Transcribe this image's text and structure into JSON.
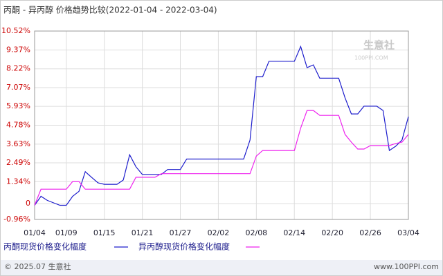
{
  "chart_data": {
    "type": "line",
    "title": "丙酮 - 异丙醇 价格趋势比较(2022-01-04 - 2022-03-04)",
    "categories": [
      "01/04",
      null,
      null,
      null,
      null,
      "01/09",
      null,
      null,
      null,
      null,
      null,
      "01/15",
      null,
      null,
      null,
      null,
      null,
      "01/21",
      null,
      null,
      null,
      null,
      null,
      "01/27",
      null,
      null,
      null,
      null,
      null,
      "02/02",
      null,
      null,
      null,
      null,
      null,
      "02/08",
      null,
      null,
      null,
      null,
      null,
      "02/14",
      null,
      null,
      null,
      null,
      null,
      "02/20",
      null,
      null,
      null,
      null,
      null,
      "02/26",
      null,
      null,
      null,
      null,
      null,
      "03/04"
    ],
    "series": [
      {
        "name": "丙酮现货价格变化幅度",
        "color": "#1c1ccc",
        "values": [
          -0.1,
          0.45,
          0.2,
          0.05,
          -0.1,
          -0.1,
          0.45,
          0.75,
          1.95,
          1.6,
          1.27,
          1.18,
          1.18,
          1.18,
          1.44,
          2.98,
          2.25,
          1.78,
          1.78,
          1.78,
          1.78,
          2.08,
          2.08,
          2.08,
          2.72,
          2.72,
          2.72,
          2.72,
          2.72,
          2.72,
          2.72,
          2.72,
          2.72,
          2.72,
          3.88,
          7.74,
          7.74,
          8.68,
          8.68,
          8.68,
          8.68,
          8.68,
          9.58,
          8.29,
          8.46,
          7.65,
          7.65,
          7.65,
          7.65,
          6.45,
          5.47,
          5.47,
          5.94,
          5.94,
          5.94,
          5.68,
          3.24,
          3.5,
          3.88,
          5.3
        ]
      },
      {
        "name": "异丙醇现货价格变化幅度",
        "color": "#ee22ee",
        "values": [
          -0.1,
          0.88,
          0.88,
          0.88,
          0.88,
          0.88,
          1.35,
          1.35,
          0.88,
          0.88,
          0.88,
          0.88,
          0.88,
          0.88,
          0.88,
          0.88,
          1.61,
          1.61,
          1.61,
          1.61,
          1.83,
          1.83,
          1.83,
          1.83,
          1.83,
          1.83,
          1.83,
          1.83,
          1.83,
          1.83,
          1.83,
          1.83,
          1.83,
          1.83,
          1.83,
          2.9,
          3.24,
          3.24,
          3.24,
          3.24,
          3.24,
          3.24,
          4.61,
          5.68,
          5.68,
          5.38,
          5.38,
          5.38,
          5.38,
          4.22,
          3.75,
          3.33,
          3.33,
          3.54,
          3.54,
          3.54,
          3.54,
          3.67,
          3.75,
          4.22
        ]
      }
    ],
    "ylim": [
      -0.96,
      10.52
    ],
    "yticks": [
      {
        "value": -0.96,
        "label": "-0.96%"
      },
      0,
      {
        "value": 1.34,
        "label": "1.34%"
      },
      {
        "value": 2.49,
        "label": "2.49%"
      },
      {
        "value": 3.63,
        "label": "3.63%"
      },
      {
        "value": 4.78,
        "label": "4.78%"
      },
      {
        "value": 5.93,
        "label": "5.93%"
      },
      {
        "value": 7.07,
        "label": "7.07%"
      },
      {
        "value": 8.22,
        "label": "8.22%"
      },
      {
        "value": 9.37,
        "label": "9.37%"
      },
      {
        "value": 10.52,
        "label": "10.52%"
      }
    ],
    "grid": true,
    "watermark": "生意社",
    "watermark_sub": "100PPI.COM",
    "footer_left": "© 2025.07 生意社",
    "footer_right": "www.100PPI.com"
  }
}
